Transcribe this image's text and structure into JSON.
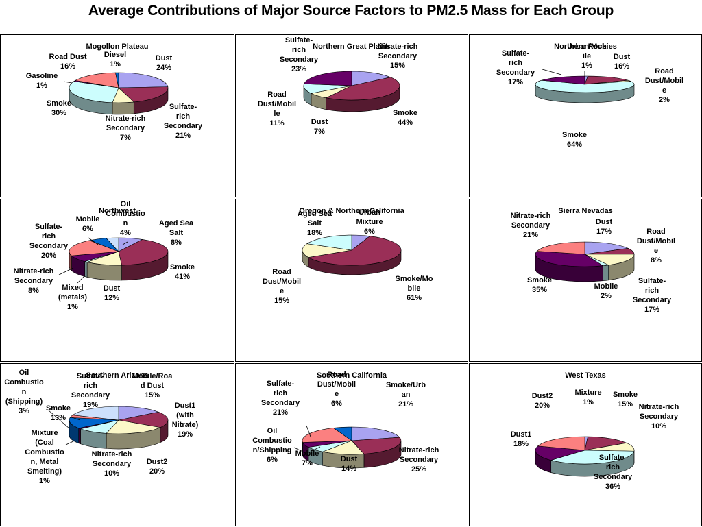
{
  "title": "Average Contributions of Major Source Factors to PM2.5 Mass for Each Group",
  "colors": {
    "lavender": "#a9a3f0",
    "maroon": "#9a2f57",
    "khaki": "#fcf8c8",
    "lightcyan": "#ccfdfd",
    "darkpurple": "#660066",
    "salmon": "#fb8080",
    "blue": "#0066cc",
    "paleblue": "#cce0fc",
    "gray": "#c6c6c6",
    "navy": "#000080"
  },
  "chart_data": [
    {
      "type": "pie",
      "title": "Mogollon Plateau",
      "slices": [
        {
          "label": "Dust",
          "value": 24,
          "pct": "24%",
          "color": "#a9a3f0"
        },
        {
          "label": "Sulfate-rich Secondary",
          "value": 21,
          "pct": "21%",
          "color": "#9a2f57"
        },
        {
          "label": "Nitrate-rich Secondary",
          "value": 7,
          "pct": "7%",
          "color": "#fcf8c8"
        },
        {
          "label": "Smoke",
          "value": 30,
          "pct": "30%",
          "color": "#ccfdfd"
        },
        {
          "label": "Gasoline",
          "value": 1,
          "pct": "1%",
          "color": "#660066"
        },
        {
          "label": "Road Dust",
          "value": 16,
          "pct": "16%",
          "color": "#fb8080"
        },
        {
          "label": "Diesel",
          "value": 1,
          "pct": "1%",
          "color": "#0066cc"
        }
      ]
    },
    {
      "type": "pie",
      "title": "Northern Great Plains",
      "slices": [
        {
          "label": "Nitrate-rich Secondary",
          "value": 15,
          "pct": "15%",
          "color": "#a9a3f0"
        },
        {
          "label": "Smoke",
          "value": 44,
          "pct": "44%",
          "color": "#9a2f57"
        },
        {
          "label": "Dust",
          "value": 7,
          "pct": "7%",
          "color": "#fcf8c8"
        },
        {
          "label": "Road Dust/Mobile",
          "value": 11,
          "pct": "11%",
          "color": "#ccfdfd"
        },
        {
          "label": "Sulfate-rich Secondary",
          "value": 23,
          "pct": "23%",
          "color": "#660066"
        }
      ]
    },
    {
      "type": "pie",
      "title": "Northern Rockies",
      "slices": [
        {
          "label": "Urban/Mobile",
          "value": 1,
          "pct": "1%",
          "color": "#a9a3f0"
        },
        {
          "label": "Dust",
          "value": 16,
          "pct": "16%",
          "color": "#9a2f57"
        },
        {
          "label": "Road Dust/Mobile",
          "value": 2,
          "pct": "2%",
          "color": "#fcf8c8"
        },
        {
          "label": "Smoke",
          "value": 64,
          "pct": "64%",
          "color": "#ccfdfd"
        },
        {
          "label": "Sulfate-rich Secondary",
          "value": 17,
          "pct": "17%",
          "color": "#660066"
        }
      ]
    },
    {
      "type": "pie",
      "title": "Northwest",
      "slices": [
        {
          "label": "Aged Sea Salt",
          "value": 8,
          "pct": "8%",
          "color": "#a9a3f0"
        },
        {
          "label": "Smoke",
          "value": 41,
          "pct": "41%",
          "color": "#9a2f57"
        },
        {
          "label": "Dust",
          "value": 12,
          "pct": "12%",
          "color": "#fcf8c8"
        },
        {
          "label": "Mixed (metals)",
          "value": 1,
          "pct": "1%",
          "color": "#ccfdfd"
        },
        {
          "label": "Nitrate-rich Secondary",
          "value": 8,
          "pct": "8%",
          "color": "#660066"
        },
        {
          "label": "Sulfate-rich Secondary",
          "value": 20,
          "pct": "20%",
          "color": "#fb8080"
        },
        {
          "label": "Mobile",
          "value": 6,
          "pct": "6%",
          "color": "#0066cc"
        },
        {
          "label": "Oil Combustion",
          "value": 4,
          "pct": "4%",
          "color": "#cce0fc"
        }
      ]
    },
    {
      "type": "pie",
      "title": "Oregon & Northern California",
      "slices": [
        {
          "label": "Urban Mixture",
          "value": 6,
          "pct": "6%",
          "color": "#a9a3f0"
        },
        {
          "label": "Smoke/Mobile",
          "value": 61,
          "pct": "61%",
          "color": "#9a2f57"
        },
        {
          "label": "Road Dust/Mobile",
          "value": 15,
          "pct": "15%",
          "color": "#fcf8c8"
        },
        {
          "label": "Aged Sea Salt",
          "value": 18,
          "pct": "18%",
          "color": "#ccfdfd"
        }
      ]
    },
    {
      "type": "pie",
      "title": "Sierra Nevadas",
      "slices": [
        {
          "label": "Dust",
          "value": 17,
          "pct": "17%",
          "color": "#a9a3f0"
        },
        {
          "label": "Road Dust/Mobile",
          "value": 8,
          "pct": "8%",
          "color": "#9a2f57"
        },
        {
          "label": "Sulfate-rich Secondary",
          "value": 17,
          "pct": "17%",
          "color": "#fcf8c8"
        },
        {
          "label": "Mobile",
          "value": 2,
          "pct": "2%",
          "color": "#ccfdfd"
        },
        {
          "label": "Smoke",
          "value": 35,
          "pct": "35%",
          "color": "#660066"
        },
        {
          "label": "Nitrate-rich Secondary",
          "value": 21,
          "pct": "21%",
          "color": "#fb8080"
        }
      ]
    },
    {
      "type": "pie",
      "title": "Southern Arizona",
      "slices": [
        {
          "label": "Mobile/Road Dust",
          "value": 15,
          "pct": "15%",
          "color": "#a9a3f0"
        },
        {
          "label": "Dust1 (with Nitrate)",
          "value": 19,
          "pct": "19%",
          "color": "#9a2f57"
        },
        {
          "label": "Dust2",
          "value": 20,
          "pct": "20%",
          "color": "#fcf8c8"
        },
        {
          "label": "Nitrate-rich Secondary",
          "value": 10,
          "pct": "10%",
          "color": "#ccfdfd"
        },
        {
          "label": "Mixture (Coal Combustion, Metal Smelting)",
          "value": 1,
          "pct": "1%",
          "color": "#660066"
        },
        {
          "label": "Smoke",
          "value": 13,
          "pct": "13%",
          "color": "#0066cc"
        },
        {
          "label": "Oil Combustion (Shipping)",
          "value": 3,
          "pct": "3%",
          "color": "#fb8080"
        },
        {
          "label": "Sulfate-rich Secondary",
          "value": 19,
          "pct": "19%",
          "color": "#cce0fc"
        }
      ]
    },
    {
      "type": "pie",
      "title": "Southern California",
      "slices": [
        {
          "label": "Smoke/Urban",
          "value": 21,
          "pct": "21%",
          "color": "#a9a3f0"
        },
        {
          "label": "Nitrate-rich Secondary",
          "value": 25,
          "pct": "25%",
          "color": "#9a2f57"
        },
        {
          "label": "Dust",
          "value": 14,
          "pct": "14%",
          "color": "#fcf8c8"
        },
        {
          "label": "Mobile",
          "value": 7,
          "pct": "7%",
          "color": "#ccfdfd"
        },
        {
          "label": "Oil Combustion/Shipping",
          "value": 6,
          "pct": "6%",
          "color": "#660066"
        },
        {
          "label": "Sulfate-rich Secondary",
          "value": 21,
          "pct": "21%",
          "color": "#fb8080"
        },
        {
          "label": "Road Dust/Mobile",
          "value": 6,
          "pct": "6%",
          "color": "#0066cc"
        }
      ]
    },
    {
      "type": "pie",
      "title": "West Texas",
      "slices": [
        {
          "label": "Mixture",
          "value": 1,
          "pct": "1%",
          "color": "#a9a3f0"
        },
        {
          "label": "Smoke",
          "value": 15,
          "pct": "15%",
          "color": "#9a2f57"
        },
        {
          "label": "Nitrate-rich Secondary",
          "value": 10,
          "pct": "10%",
          "color": "#fcf8c8"
        },
        {
          "label": "Sulfate-rich Secondary",
          "value": 36,
          "pct": "36%",
          "color": "#ccfdfd"
        },
        {
          "label": "Dust1",
          "value": 18,
          "pct": "18%",
          "color": "#660066"
        },
        {
          "label": "Dust2",
          "value": 20,
          "pct": "20%",
          "color": "#fb8080"
        }
      ]
    }
  ]
}
